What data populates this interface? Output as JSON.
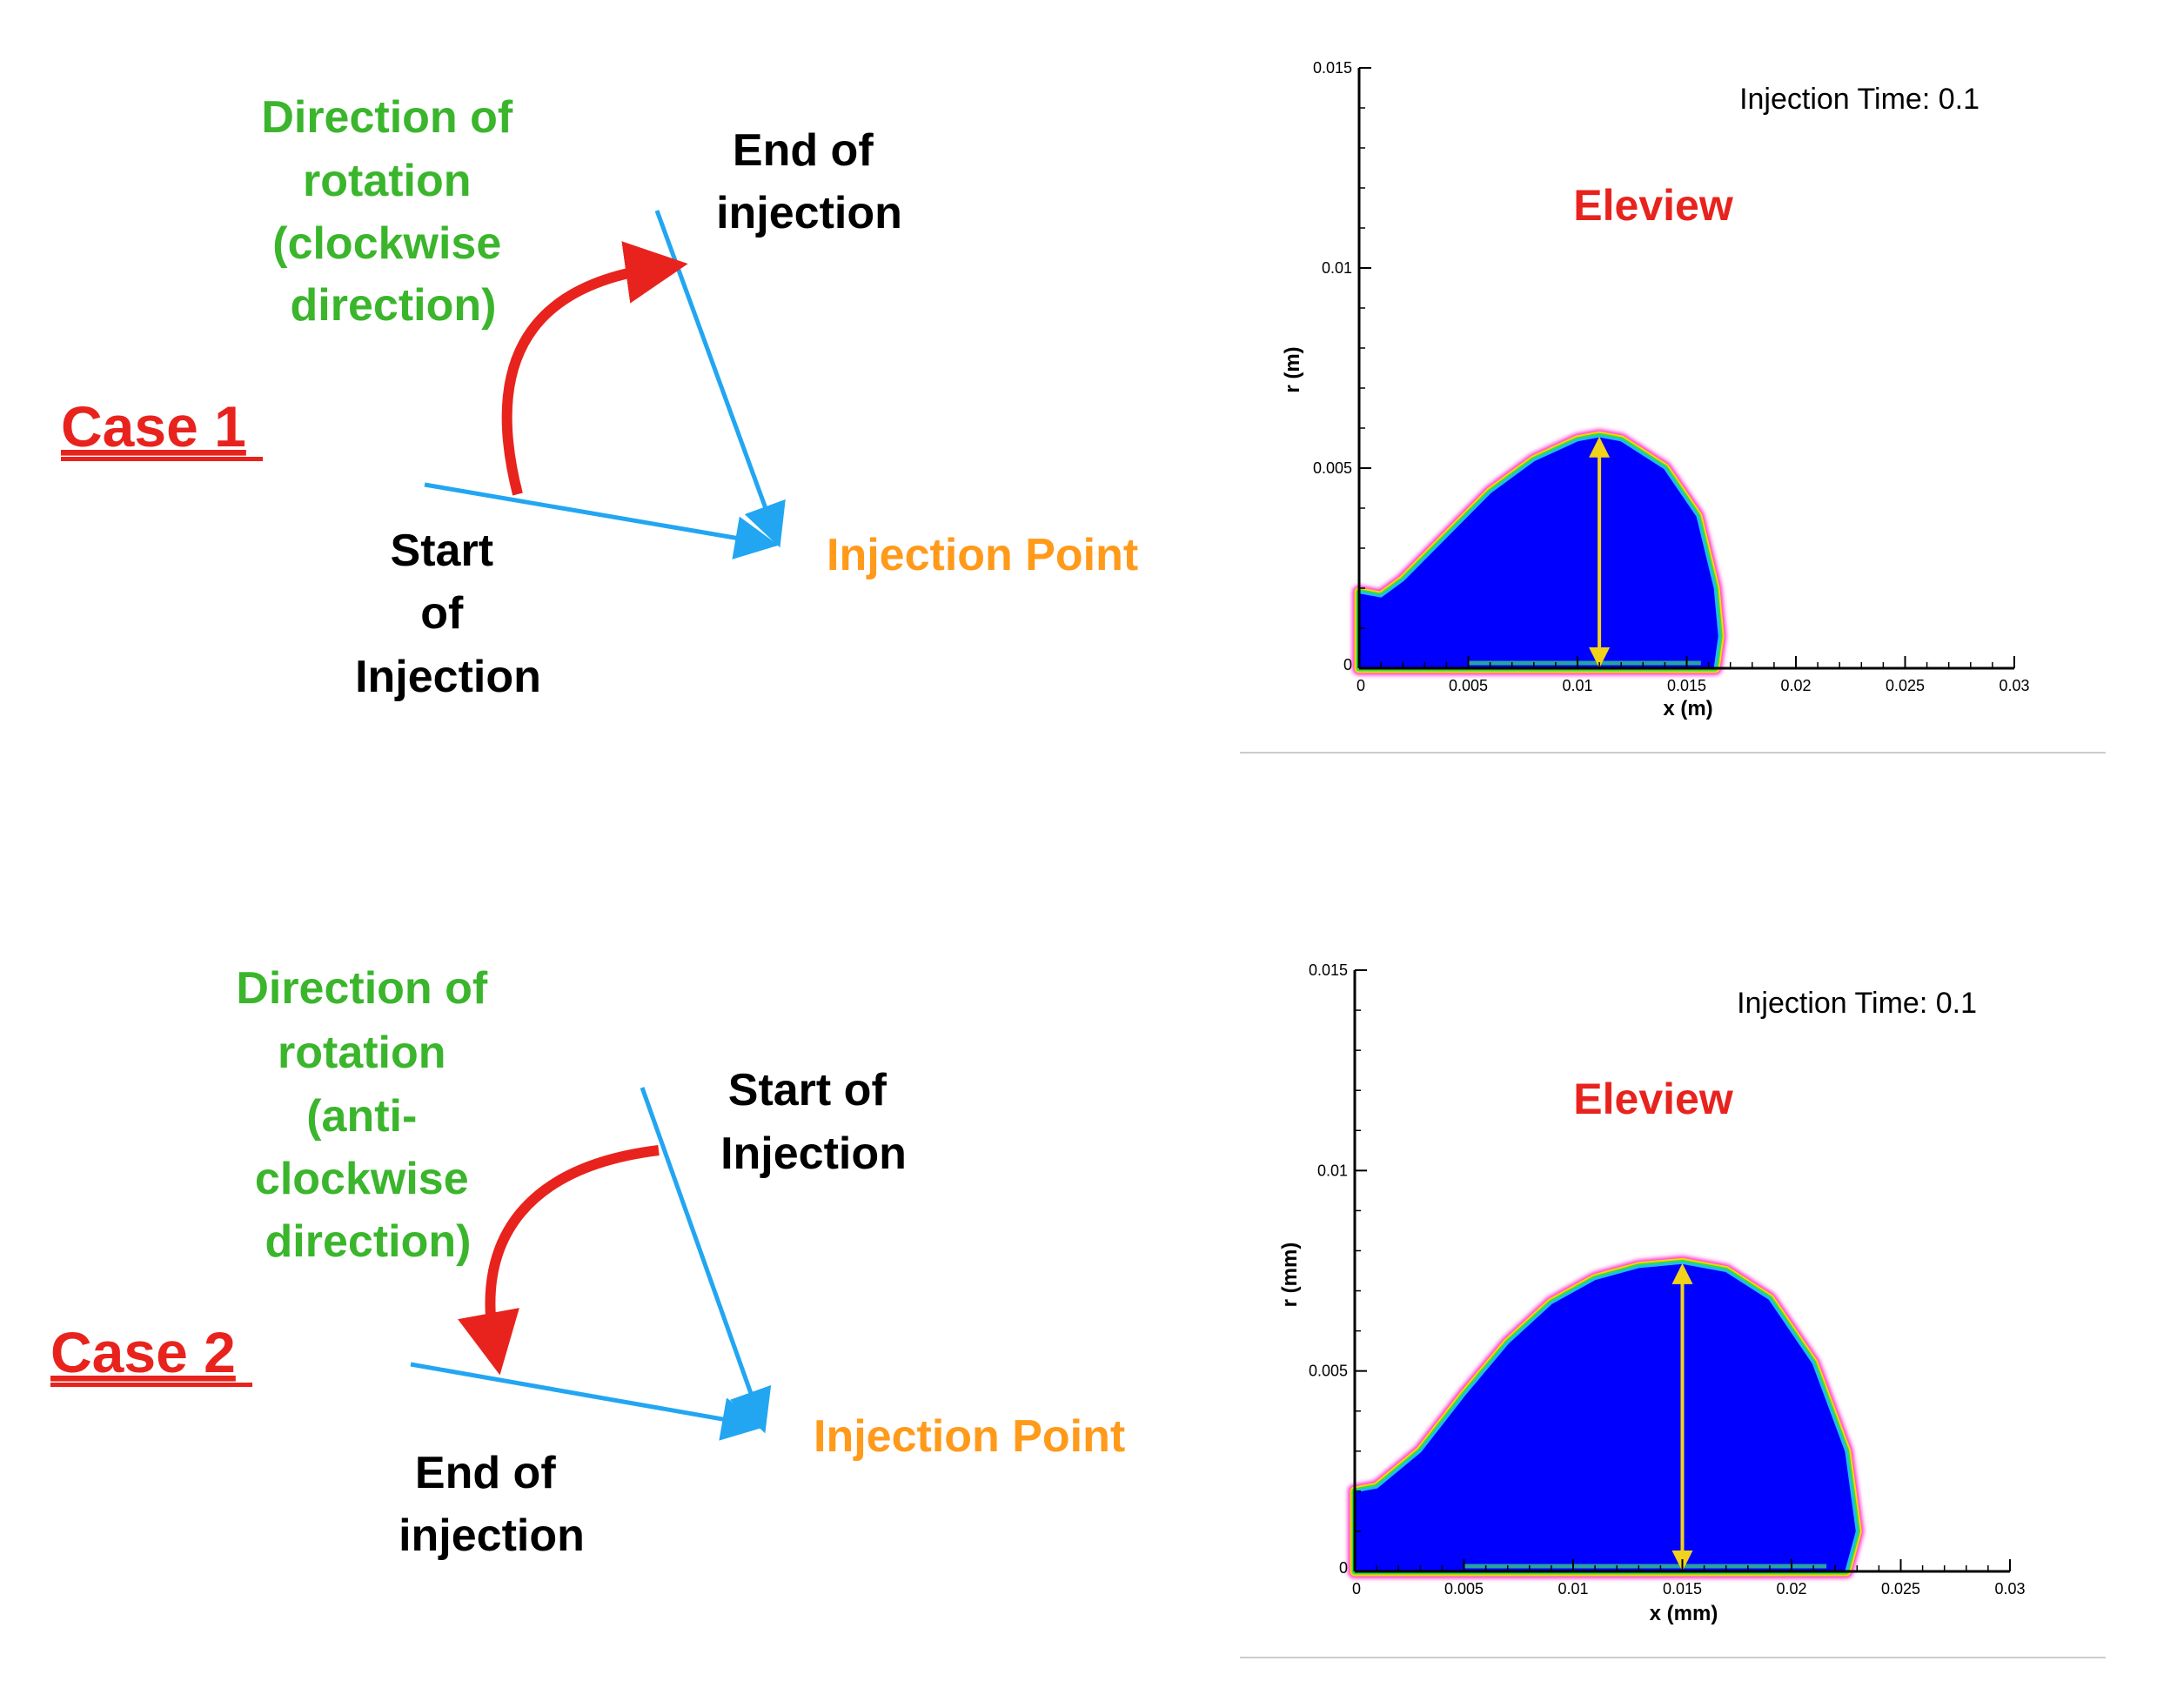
{
  "colors": {
    "arrow_blue": "#22a6f2",
    "rotation_red": "#e8231d",
    "green_text": "#3ab52c",
    "orange_text": "#ff9a1a",
    "black_text": "#000000",
    "fill_blue": "#0000ff",
    "height_arrow": "#f2d21b"
  },
  "case1": {
    "title": "Case 1",
    "rotation": [
      "Direction of",
      "rotation",
      "(clockwise",
      "direction)"
    ],
    "end_label": [
      "End of",
      "injection"
    ],
    "start_label": [
      "Start",
      "of",
      "Injection"
    ],
    "point_label": "Injection Point"
  },
  "case2": {
    "title": "Case 2",
    "rotation": [
      "Direction of",
      "rotation",
      "(anti-",
      "clockwise",
      "direction)"
    ],
    "start_label": [
      "Start of",
      "Injection"
    ],
    "end_label": [
      "End of",
      "injection"
    ],
    "point_label": "Injection Point"
  },
  "plot1": {
    "annotation": "Injection Time: 0.1",
    "name": "Eleview",
    "xlabel": "x (m)",
    "ylabel": "r (m)",
    "xlim": [
      0,
      0.03
    ],
    "ylim": [
      0,
      0.015
    ],
    "xticks": [
      "0",
      "0.005",
      "0.01",
      "0.015",
      "0.02",
      "0.025",
      "0.03"
    ],
    "yticks": [
      "0",
      "0.005",
      "0.01",
      "0.015"
    ],
    "profile": [
      [
        0,
        0.0019
      ],
      [
        0.001,
        0.0018
      ],
      [
        0.002,
        0.0022
      ],
      [
        0.004,
        0.0033
      ],
      [
        0.006,
        0.0044
      ],
      [
        0.008,
        0.0052
      ],
      [
        0.01,
        0.0057
      ],
      [
        0.011,
        0.0058
      ],
      [
        0.012,
        0.0057
      ],
      [
        0.014,
        0.005
      ],
      [
        0.0155,
        0.0038
      ],
      [
        0.0163,
        0.002
      ],
      [
        0.0165,
        0.0008
      ],
      [
        0.0163,
        0
      ]
    ],
    "height_arrow_x": 0.011,
    "height_arrow_y": [
      0,
      0.0057
    ]
  },
  "plot2": {
    "annotation": "Injection Time: 0.1",
    "name": "Eleview",
    "xlabel": "x (mm)",
    "ylabel": "r (mm)",
    "xlim": [
      0,
      0.03
    ],
    "ylim": [
      0,
      0.015
    ],
    "xticks": [
      "0",
      "0.005",
      "0.01",
      "0.015",
      "0.02",
      "0.025",
      "0.03"
    ],
    "yticks": [
      "0",
      "0.005",
      "0.01",
      "0.015"
    ],
    "profile": [
      [
        0,
        0.002
      ],
      [
        0.001,
        0.0021
      ],
      [
        0.003,
        0.003
      ],
      [
        0.005,
        0.0044
      ],
      [
        0.007,
        0.0057
      ],
      [
        0.009,
        0.0067
      ],
      [
        0.011,
        0.0073
      ],
      [
        0.013,
        0.0076
      ],
      [
        0.015,
        0.0077
      ],
      [
        0.017,
        0.0075
      ],
      [
        0.019,
        0.0068
      ],
      [
        0.021,
        0.0052
      ],
      [
        0.0225,
        0.003
      ],
      [
        0.023,
        0.001
      ],
      [
        0.0225,
        0
      ]
    ],
    "height_arrow_x": 0.015,
    "height_arrow_y": [
      0,
      0.0076
    ]
  }
}
